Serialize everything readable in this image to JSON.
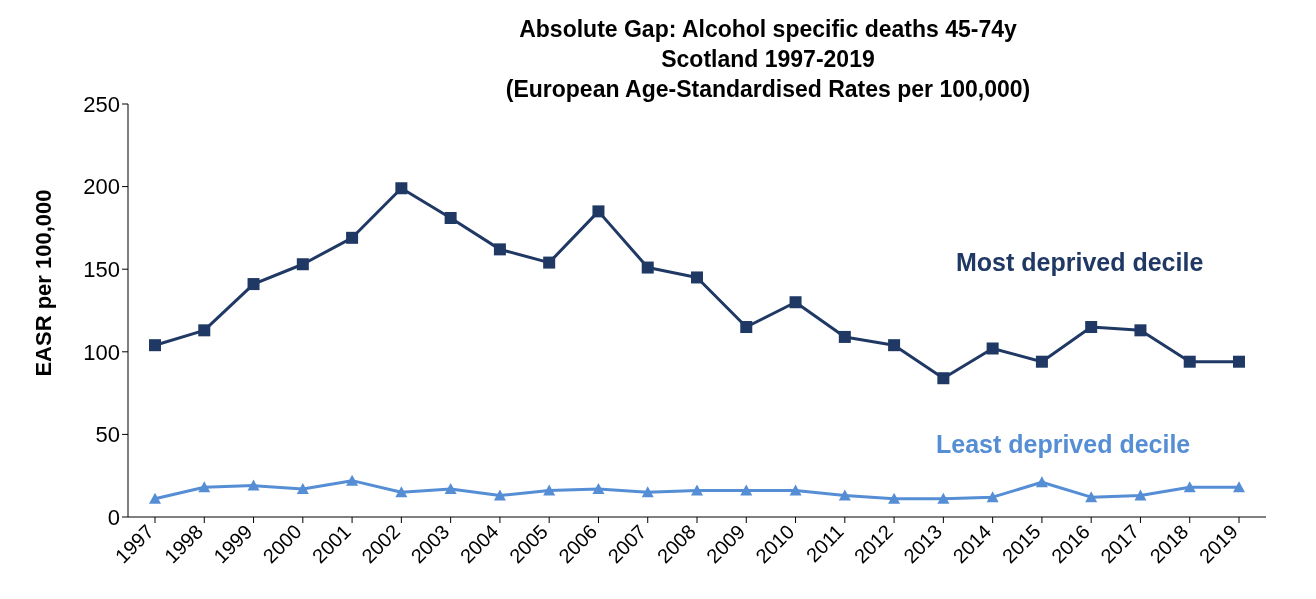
{
  "chart_data": {
    "type": "line",
    "title": "Absolute Gap: Alcohol specific deaths 45-74y\nScotland 1997-2019\n(European Age-Standardised Rates per 100,000)",
    "ylabel": "EASR per 100,000",
    "categories": [
      "1997",
      "1998",
      "1999",
      "2000",
      "2001",
      "2002",
      "2003",
      "2004",
      "2005",
      "2006",
      "2007",
      "2008",
      "2009",
      "2010",
      "2011",
      "2012",
      "2013",
      "2014",
      "2015",
      "2016",
      "2017",
      "2018",
      "2019"
    ],
    "series": [
      {
        "name": "Most deprived decile",
        "color": "#1f3864",
        "marker": "square",
        "values": [
          104,
          113,
          141,
          153,
          169,
          199,
          181,
          162,
          154,
          185,
          151,
          145,
          115,
          130,
          109,
          104,
          84,
          102,
          94,
          115,
          113,
          94,
          94
        ]
      },
      {
        "name": "Least deprived decile",
        "color": "#558ed5",
        "marker": "triangle",
        "values": [
          11,
          18,
          19,
          17,
          22,
          15,
          17,
          13,
          16,
          17,
          15,
          16,
          16,
          16,
          13,
          11,
          11,
          12,
          21,
          12,
          13,
          18,
          18
        ]
      }
    ],
    "ylim": [
      0,
      250
    ],
    "yticks": [
      0,
      50,
      100,
      150,
      200,
      250
    ]
  }
}
